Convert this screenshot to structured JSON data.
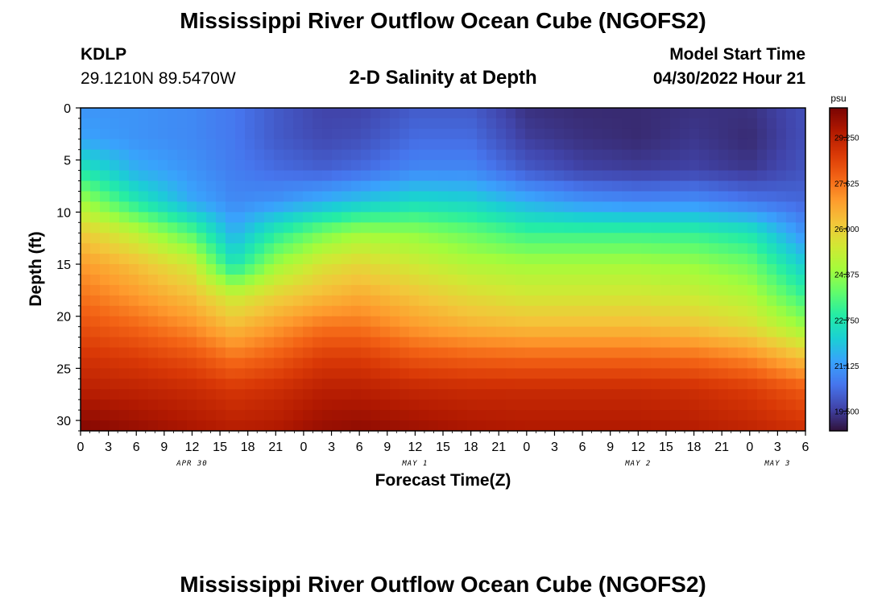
{
  "page": {
    "title": "Mississippi River Outflow Ocean Cube (NGOFS2)",
    "title_repeat": "Mississippi River Outflow Ocean Cube (NGOFS2)"
  },
  "station": {
    "id": "KDLP",
    "coords": "29.1210N  89.5470W"
  },
  "model": {
    "label": "Model Start Time",
    "time": "04/30/2022 Hour 21"
  },
  "colorbar": {
    "unit": "psu",
    "tick_labels": [
      "29.250",
      "27.625",
      "26.000",
      "24.375",
      "22.750",
      "21.125",
      "19.500"
    ],
    "colors": [
      "#30123b",
      "#4145ab",
      "#4675ed",
      "#39a2fc",
      "#1bcfd4",
      "#24eca6",
      "#61fc6c",
      "#a4fc3b",
      "#d1e834",
      "#f3c63a",
      "#fe9b2d",
      "#f36315",
      "#d93806",
      "#b11901",
      "#7a0403"
    ]
  },
  "chart_data": {
    "type": "heatmap",
    "title": "2-D Salinity at Depth",
    "xlabel": "Forecast Time(Z)",
    "ylabel": "Depth (ft)",
    "x_ticks": [
      "0",
      "3",
      "6",
      "9",
      "12",
      "15",
      "18",
      "21",
      "0",
      "3",
      "6",
      "9",
      "12",
      "15",
      "18",
      "21",
      "0",
      "3",
      "6",
      "9",
      "12",
      "15",
      "18",
      "21",
      "0",
      "3",
      "6"
    ],
    "x_range_hours": [
      0,
      78
    ],
    "date_labels": [
      {
        "label": "APR 30",
        "hour": 12
      },
      {
        "label": "MAY 1",
        "hour": 36
      },
      {
        "label": "MAY 2",
        "hour": 60
      },
      {
        "label": "MAY 3",
        "hour": 75
      }
    ],
    "y_ticks": [
      0,
      5,
      10,
      15,
      20,
      25,
      30
    ],
    "ylim": [
      0,
      31
    ],
    "y_inverted": true,
    "value_range": [
      18.8,
      30.3
    ],
    "hours": [
      0,
      6,
      12,
      16.5,
      21,
      26,
      30,
      36,
      42,
      48,
      54,
      60,
      66,
      72,
      78
    ],
    "depths": [
      0,
      3,
      6,
      9,
      12,
      15,
      18,
      21,
      24,
      27,
      31
    ],
    "salinity": [
      [
        21.0,
        21.0,
        20.8,
        20.5,
        20.0,
        19.6,
        19.6,
        20.0,
        20.0,
        19.3,
        19.2,
        19.2,
        19.3,
        19.3,
        19.8
      ],
      [
        21.3,
        21.0,
        20.8,
        20.5,
        20.0,
        19.7,
        19.8,
        20.3,
        20.3,
        19.5,
        19.3,
        19.2,
        19.4,
        19.2,
        19.8
      ],
      [
        22.8,
        21.5,
        21.0,
        20.6,
        20.3,
        20.1,
        20.3,
        20.8,
        20.8,
        20.0,
        19.6,
        19.5,
        19.6,
        19.4,
        19.9
      ],
      [
        24.6,
        22.8,
        21.4,
        20.8,
        21.0,
        21.5,
        21.9,
        22.4,
        22.2,
        21.5,
        21.0,
        20.8,
        20.9,
        20.5,
        20.2
      ],
      [
        26.1,
        25.0,
        23.5,
        21.5,
        22.9,
        24.0,
        24.5,
        24.3,
        23.8,
        23.2,
        23.2,
        23.2,
        23.1,
        22.7,
        20.9
      ],
      [
        27.0,
        26.3,
        25.3,
        22.6,
        24.5,
        25.5,
        25.8,
        25.3,
        24.8,
        24.6,
        24.6,
        24.6,
        24.4,
        23.9,
        22.0
      ],
      [
        27.6,
        27.0,
        26.3,
        25.2,
        25.9,
        26.4,
        26.7,
        26.2,
        25.7,
        25.4,
        25.4,
        25.4,
        25.2,
        24.8,
        23.1
      ],
      [
        28.2,
        27.8,
        27.2,
        26.4,
        27.0,
        27.6,
        27.6,
        27.0,
        26.6,
        26.4,
        26.4,
        26.4,
        26.2,
        25.7,
        24.4
      ],
      [
        28.8,
        28.6,
        28.2,
        27.6,
        28.0,
        28.6,
        28.6,
        28.1,
        27.9,
        27.8,
        27.8,
        27.8,
        27.7,
        27.3,
        26.3
      ],
      [
        29.3,
        29.2,
        29.0,
        28.7,
        28.9,
        29.3,
        29.3,
        29.1,
        29.0,
        29.0,
        29.0,
        29.0,
        28.9,
        28.6,
        28.0
      ],
      [
        30.2,
        29.9,
        29.6,
        29.4,
        29.5,
        29.9,
        30.0,
        29.8,
        29.6,
        29.5,
        29.5,
        29.5,
        29.4,
        29.2,
        28.9
      ]
    ]
  }
}
